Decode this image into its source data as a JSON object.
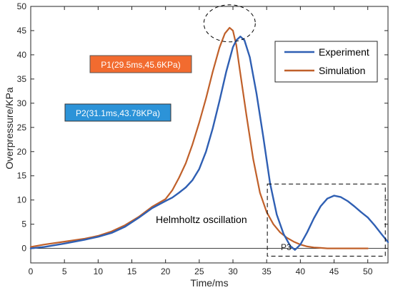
{
  "chart_data": {
    "type": "line",
    "xlabel": "Time/ms",
    "ylabel": "Overpressure/KPa",
    "xlim": [
      0,
      53
    ],
    "ylim": [
      -3,
      50
    ],
    "xticks": [
      0,
      5,
      10,
      15,
      20,
      25,
      30,
      35,
      40,
      45,
      50
    ],
    "yticks": [
      0,
      5,
      10,
      15,
      20,
      25,
      30,
      35,
      40,
      45,
      50
    ],
    "grid": false,
    "legend_position": "top-right",
    "series": [
      {
        "name": "Experiment",
        "color": "#2f5fb3",
        "x": [
          0,
          2,
          5,
          8,
          10,
          12,
          14,
          16,
          18,
          20,
          21,
          22,
          23,
          24,
          25,
          26,
          27,
          28,
          29,
          30,
          30.5,
          31.1,
          31.7,
          32.5,
          33.5,
          34.5,
          35.5,
          36.5,
          37.5,
          38.5,
          39.2,
          40,
          41,
          42,
          43,
          44,
          45,
          46,
          47,
          48,
          49,
          50,
          51,
          52,
          53
        ],
        "y": [
          0,
          0.3,
          1,
          1.8,
          2.4,
          3.2,
          4.5,
          6.3,
          8.3,
          9.8,
          10.5,
          11.5,
          12.6,
          14.1,
          16.4,
          20,
          24.8,
          30.5,
          36.5,
          41.6,
          43,
          43.78,
          43,
          39.5,
          32,
          23,
          13.5,
          7,
          3,
          0.5,
          -0.3,
          0.8,
          3.3,
          6.2,
          8.7,
          10.3,
          10.9,
          10.6,
          9.8,
          8.7,
          7.5,
          6.4,
          4.8,
          3,
          1.3
        ]
      },
      {
        "name": "Simulation",
        "color": "#c0602a",
        "x": [
          0,
          2,
          5,
          8,
          10,
          12,
          14,
          16,
          18,
          20,
          21,
          22,
          23,
          24,
          25,
          26,
          27,
          28,
          28.8,
          29.5,
          30,
          30.5,
          31,
          32,
          33,
          34,
          35,
          36,
          37,
          38,
          39,
          40,
          41,
          42,
          43,
          44,
          45,
          46,
          47,
          48,
          49,
          50
        ],
        "y": [
          0.3,
          0.8,
          1.4,
          2,
          2.6,
          3.5,
          4.8,
          6.5,
          8.6,
          10.2,
          12,
          14.6,
          17.6,
          21.5,
          26,
          31,
          36.5,
          41.5,
          44.4,
          45.6,
          45,
          42,
          37,
          27.5,
          18.5,
          11.5,
          7.5,
          5,
          3.3,
          2.2,
          1.4,
          0.8,
          0.4,
          0.2,
          0.1,
          0,
          0,
          0,
          0,
          0,
          0,
          0
        ]
      }
    ],
    "annotations": {
      "p1": "P1(29.5ms,45.6KPa)",
      "p2": "P2(31.1ms,43.78KPa)",
      "p3": "P3",
      "helmholtz": "Helmholtz oscillation"
    },
    "callout_colors": {
      "p1": "#f26b2f",
      "p2": "#2c93d8"
    }
  }
}
